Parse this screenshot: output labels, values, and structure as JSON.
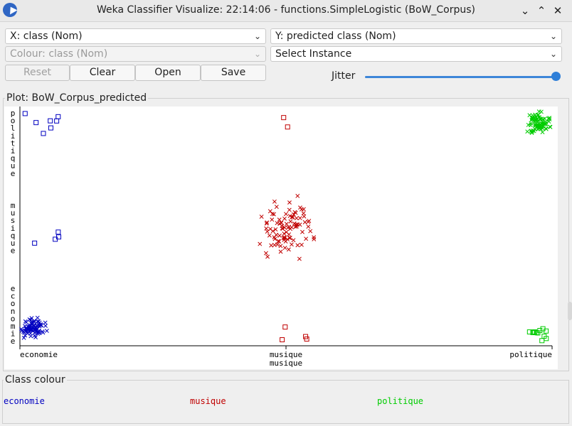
{
  "window": {
    "title": "Weka Classifier Visualize: 22:14:06 - functions.SimpleLogistic (BoW_Corpus)",
    "app_icon": "weka-bird-icon",
    "controls": [
      "minimize-icon",
      "maximize-icon",
      "close-icon"
    ]
  },
  "controls": {
    "x_axis": "X: class (Nom)",
    "y_axis": "Y: predicted class (Nom)",
    "colour": "Colour: class (Nom)",
    "select_instance": "Select Instance",
    "reset": "Reset",
    "clear": "Clear",
    "open": "Open",
    "save": "Save",
    "jitter_label": "Jitter",
    "jitter_value": 1.0
  },
  "plot": {
    "legend": "Plot: BoW_Corpus_predicted"
  },
  "class_colour": {
    "legend": "Class colour",
    "classes": [
      {
        "label": "economie",
        "color": "#0000c0"
      },
      {
        "label": "musique",
        "color": "#c00000"
      },
      {
        "label": "politique",
        "color": "#00cc00"
      }
    ]
  },
  "chart_data": {
    "type": "scatter",
    "title": "",
    "xlabel": "",
    "ylabel": "",
    "x_categories": [
      "economie",
      "musique",
      "politique"
    ],
    "y_categories": [
      "economie",
      "musique",
      "politique"
    ],
    "x_tick_labels": [
      "economie",
      "musique",
      "politique"
    ],
    "x_axis_title": "musique",
    "y_tick_labels": [
      "economie",
      "musique",
      "politique"
    ],
    "markers": {
      "correct": "cross",
      "incorrect": "square"
    },
    "colors": {
      "economie": "#0000c0",
      "musique": "#c00000",
      "politique": "#00cc00"
    },
    "groups": [
      {
        "actual": "economie",
        "predicted": "economie",
        "marker": "cross",
        "count": 80
      },
      {
        "actual": "economie",
        "predicted": "musique",
        "marker": "square",
        "count": 4
      },
      {
        "actual": "economie",
        "predicted": "politique",
        "marker": "square",
        "count": 7
      },
      {
        "actual": "musique",
        "predicted": "economie",
        "marker": "square",
        "count": 4
      },
      {
        "actual": "musique",
        "predicted": "musique",
        "marker": "cross",
        "count": 95
      },
      {
        "actual": "musique",
        "predicted": "politique",
        "marker": "square",
        "count": 2
      },
      {
        "actual": "politique",
        "predicted": "economie",
        "marker": "square",
        "count": 12
      },
      {
        "actual": "politique",
        "predicted": "musique",
        "marker": "square",
        "count": 0
      },
      {
        "actual": "politique",
        "predicted": "politique",
        "marker": "cross",
        "count": 80
      }
    ]
  }
}
